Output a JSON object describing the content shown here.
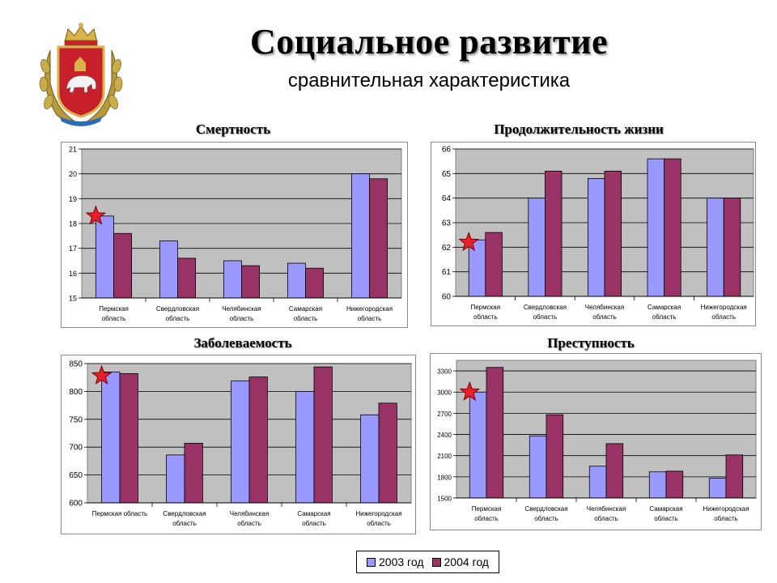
{
  "header": {
    "title": "Социальное развитие",
    "subtitle": "сравнительная характеристика"
  },
  "colors": {
    "series_2003": "#9999ff",
    "series_2004": "#993366",
    "plot_bg": "#c0c0c0",
    "star": "#e8202a"
  },
  "legend": {
    "items": [
      {
        "label": "2003 год",
        "color": "#9999ff"
      },
      {
        "label": "2004 год",
        "color": "#993366"
      }
    ]
  },
  "chart_data": [
    {
      "type": "bar",
      "title": "Смертность",
      "categories": [
        [
          "Пермская",
          "область"
        ],
        [
          "Свердловская",
          "область"
        ],
        [
          "Челябинская",
          "область"
        ],
        [
          "Самарская",
          "область"
        ],
        [
          "Нижегородская",
          "область"
        ]
      ],
      "series": [
        {
          "name": "2003 год",
          "values": [
            18.3,
            17.3,
            16.5,
            16.4,
            20.0
          ]
        },
        {
          "name": "2004 год",
          "values": [
            17.6,
            16.6,
            16.3,
            16.2,
            19.8
          ]
        }
      ],
      "ylim": [
        15,
        21
      ],
      "yticks": [
        15,
        16,
        17,
        18,
        19,
        20,
        21
      ],
      "grid": true,
      "marker": {
        "category_index": 0,
        "value": 18.3,
        "shape": "star"
      }
    },
    {
      "type": "bar",
      "title": "Продолжительность жизни",
      "categories": [
        [
          "Пермская",
          "область"
        ],
        [
          "Свердловская",
          "область"
        ],
        [
          "Челябинская",
          "область"
        ],
        [
          "Самарская",
          "область"
        ],
        [
          "Нижегородская",
          "область"
        ]
      ],
      "series": [
        {
          "name": "2003 год",
          "values": [
            62.3,
            64.0,
            64.8,
            65.6,
            64.0
          ]
        },
        {
          "name": "2004 год",
          "values": [
            62.6,
            65.1,
            65.1,
            65.6,
            64.0
          ]
        }
      ],
      "ylim": [
        60,
        66
      ],
      "yticks": [
        60,
        61,
        62,
        63,
        64,
        65,
        66
      ],
      "grid": true,
      "marker": {
        "category_index": 0,
        "value": 62.2,
        "shape": "star"
      }
    },
    {
      "type": "bar",
      "title": "Заболеваемость",
      "categories": [
        [
          "Пермская область"
        ],
        [
          "Свердловская",
          "область"
        ],
        [
          "Челябинская",
          "область"
        ],
        [
          "Самарская",
          "область"
        ],
        [
          "Нижегородская",
          "область"
        ]
      ],
      "series": [
        {
          "name": "2003 год",
          "values": [
            835,
            686,
            819,
            800,
            758
          ]
        },
        {
          "name": "2004 год",
          "values": [
            832,
            707,
            826,
            844,
            779
          ]
        }
      ],
      "ylim": [
        600,
        850
      ],
      "yticks": [
        600,
        650,
        700,
        750,
        800,
        850
      ],
      "grid": true,
      "marker": {
        "category_index": 0,
        "value": 828,
        "shape": "star"
      }
    },
    {
      "type": "bar",
      "title": "Преступность",
      "categories": [
        [
          "Пермская",
          "область"
        ],
        [
          "Свердловская",
          "область"
        ],
        [
          "Челябинская",
          "область"
        ],
        [
          "Самарская",
          "область"
        ],
        [
          "Нижегородская",
          "область"
        ]
      ],
      "series": [
        {
          "name": "2003 год",
          "values": [
            3000,
            2380,
            1950,
            1870,
            1780
          ]
        },
        {
          "name": "2004 год",
          "values": [
            3350,
            2680,
            2270,
            1880,
            2110
          ]
        }
      ],
      "ylim": [
        1500,
        3450
      ],
      "yticks": [
        1500,
        1800,
        2100,
        2400,
        2700,
        3000,
        3300
      ],
      "grid": true,
      "marker": {
        "category_index": 0,
        "value": 3000,
        "shape": "star"
      }
    }
  ]
}
